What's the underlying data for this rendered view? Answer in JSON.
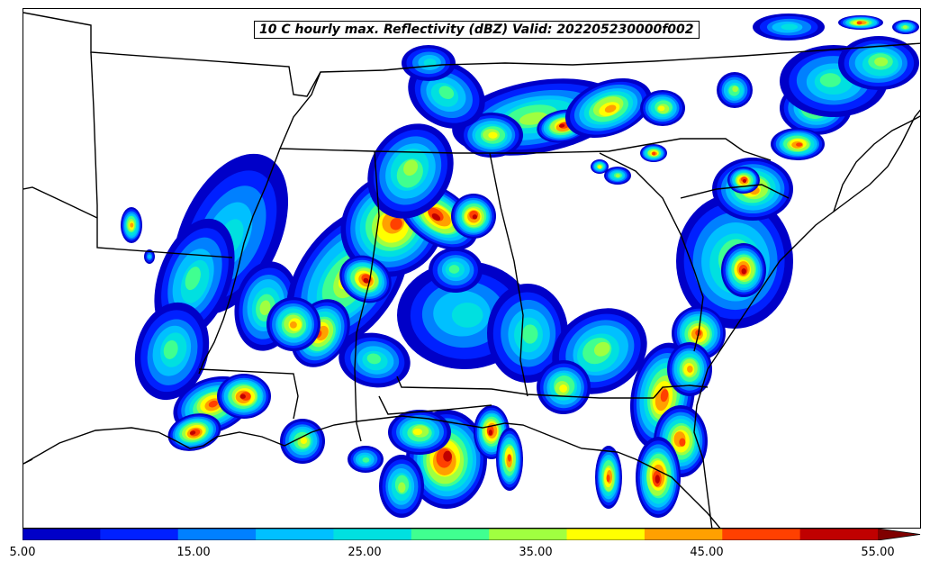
{
  "title": "10 C hourly max. Reflectivity (dBZ) Valid: 202205230000f002",
  "colorbar": {
    "min": 5,
    "max": 55,
    "extend": "max",
    "ticks": [
      "5.00",
      "15.00",
      "25.00",
      "35.00",
      "45.00",
      "55.00"
    ],
    "levels": [
      5,
      10,
      15,
      20,
      25,
      30,
      35,
      40,
      45,
      50,
      55
    ],
    "colors": [
      "#0000c8",
      "#0020ff",
      "#0080ff",
      "#00c0ff",
      "#00e0e0",
      "#40ff90",
      "#a0ff40",
      "#ffff00",
      "#ffa000",
      "#ff4000",
      "#c00000",
      "#800000"
    ]
  },
  "map": {
    "region": "Southeastern United States",
    "boundaries": [
      "state-lines",
      "coastline"
    ]
  }
}
